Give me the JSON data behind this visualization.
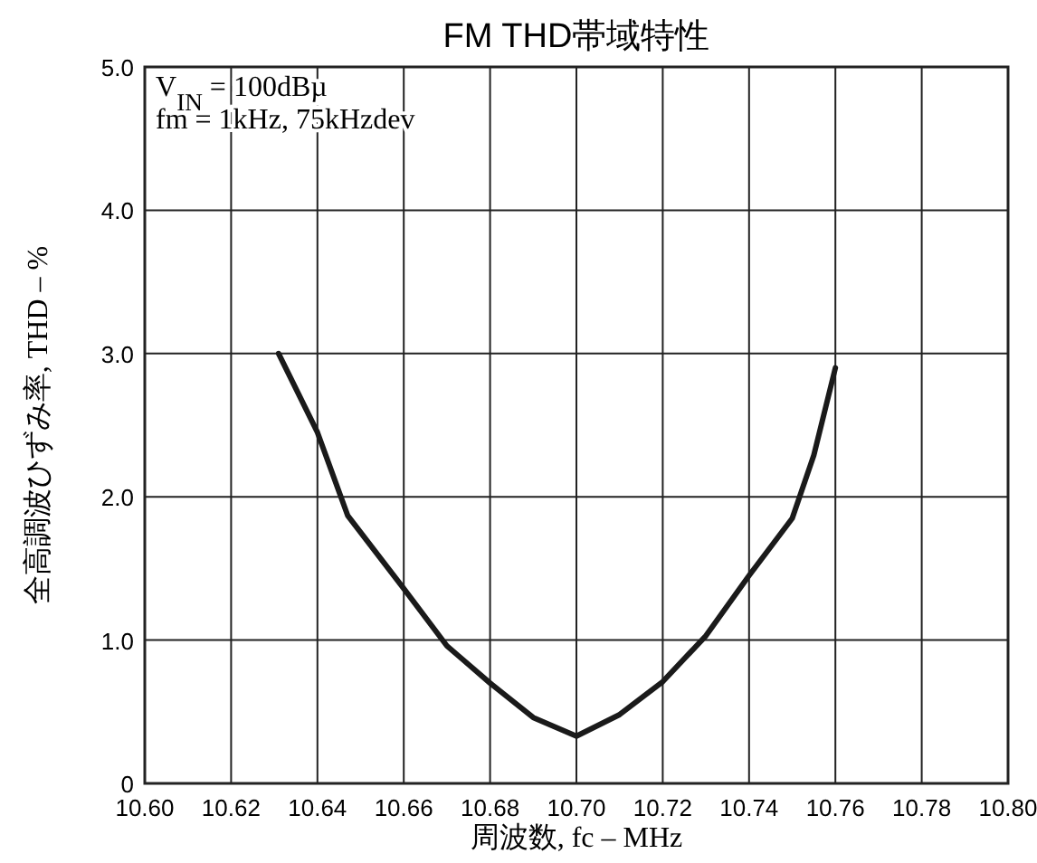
{
  "chart_data": {
    "type": "line",
    "title": "FM THD帯域特性",
    "xlabel": "周波数, fc – MHz",
    "ylabel": "全高調波ひずみ率, THD – %",
    "annotations": [
      "V$_{IN}$ = 100dBµ",
      "fm = 1kHz, 75kHzdev"
    ],
    "x": [
      10.631,
      10.64,
      10.647,
      10.66,
      10.67,
      10.68,
      10.69,
      10.7,
      10.71,
      10.72,
      10.73,
      10.74,
      10.75,
      10.755,
      10.76
    ],
    "series": [
      {
        "color": "#1a1a1a",
        "values": [
          3.0,
          2.45,
          1.87,
          1.36,
          0.96,
          0.7,
          0.46,
          0.33,
          0.48,
          0.71,
          1.03,
          1.45,
          1.85,
          2.29,
          2.9
        ]
      }
    ],
    "xlim": [
      10.6,
      10.8
    ],
    "ylim": [
      0,
      5.0
    ],
    "xticks": [
      {
        "value": 10.6,
        "label": "10.60"
      },
      {
        "value": 10.62,
        "label": "10.62"
      },
      {
        "value": 10.64,
        "label": "10.64"
      },
      {
        "value": 10.66,
        "label": "10.66"
      },
      {
        "value": 10.68,
        "label": "10.68"
      },
      {
        "value": 10.7,
        "label": "10.70"
      },
      {
        "value": 10.72,
        "label": "10.72"
      },
      {
        "value": 10.74,
        "label": "10.74"
      },
      {
        "value": 10.76,
        "label": "10.76"
      },
      {
        "value": 10.78,
        "label": "10.78"
      },
      {
        "value": 10.8,
        "label": "10.80"
      }
    ],
    "yticks": [
      0,
      {
        "value": 1,
        "label": "1.0"
      },
      {
        "value": 2,
        "label": "2.0"
      },
      {
        "value": 3,
        "label": "3.0"
      },
      {
        "value": 4,
        "label": "4.0"
      },
      {
        "value": 5,
        "label": "5.0"
      }
    ],
    "grid": true,
    "line_style": "solid"
  }
}
